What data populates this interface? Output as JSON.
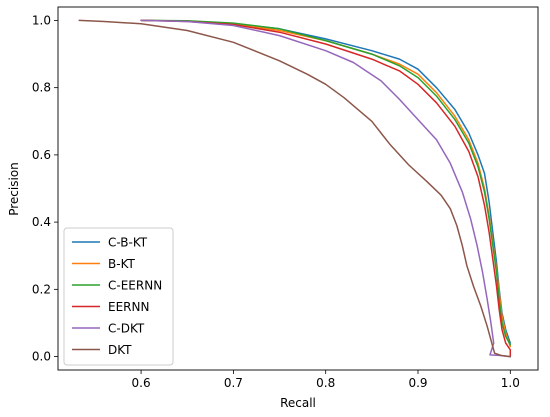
{
  "chart_data": {
    "type": "line",
    "title": "",
    "xlabel": "Recall",
    "ylabel": "Precision",
    "xlim": [
      0.51,
      1.03
    ],
    "ylim": [
      -0.04,
      1.04
    ],
    "xticks": [
      0.6,
      0.7,
      0.8,
      0.9,
      1.0
    ],
    "xtick_labels": [
      "0.6",
      "0.7",
      "0.8",
      "0.9",
      "1.0"
    ],
    "yticks": [
      0.0,
      0.2,
      0.4,
      0.6,
      0.8,
      1.0
    ],
    "ytick_labels": [
      "0.0",
      "0.2",
      "0.4",
      "0.6",
      "0.8",
      "1.0"
    ],
    "grid": false,
    "legend_position": "lower-left",
    "series": [
      {
        "name": "C-B-KT",
        "color": "#1f77b4",
        "points": [
          [
            0.6,
            1.0
          ],
          [
            0.65,
            0.998
          ],
          [
            0.7,
            0.99
          ],
          [
            0.75,
            0.975
          ],
          [
            0.8,
            0.945
          ],
          [
            0.85,
            0.91
          ],
          [
            0.88,
            0.885
          ],
          [
            0.9,
            0.855
          ],
          [
            0.92,
            0.8
          ],
          [
            0.94,
            0.735
          ],
          [
            0.955,
            0.665
          ],
          [
            0.965,
            0.6
          ],
          [
            0.972,
            0.545
          ],
          [
            0.977,
            0.46
          ],
          [
            0.981,
            0.37
          ],
          [
            0.985,
            0.28
          ],
          [
            0.988,
            0.2
          ],
          [
            0.991,
            0.13
          ],
          [
            0.995,
            0.08
          ],
          [
            1.0,
            0.04
          ]
        ]
      },
      {
        "name": "B-KT",
        "color": "#ff7f0e",
        "points": [
          [
            0.6,
            1.0
          ],
          [
            0.65,
            0.998
          ],
          [
            0.7,
            0.99
          ],
          [
            0.75,
            0.97
          ],
          [
            0.8,
            0.94
          ],
          [
            0.85,
            0.9
          ],
          [
            0.88,
            0.87
          ],
          [
            0.9,
            0.84
          ],
          [
            0.92,
            0.785
          ],
          [
            0.94,
            0.715
          ],
          [
            0.955,
            0.645
          ],
          [
            0.965,
            0.575
          ],
          [
            0.972,
            0.5
          ],
          [
            0.977,
            0.42
          ],
          [
            0.981,
            0.34
          ],
          [
            0.985,
            0.26
          ],
          [
            0.988,
            0.19
          ],
          [
            0.991,
            0.12
          ],
          [
            0.995,
            0.07
          ],
          [
            1.0,
            0.03
          ]
        ]
      },
      {
        "name": "C-EERNN",
        "color": "#2ca02c",
        "points": [
          [
            0.6,
            1.0
          ],
          [
            0.65,
            0.999
          ],
          [
            0.7,
            0.992
          ],
          [
            0.75,
            0.975
          ],
          [
            0.8,
            0.94
          ],
          [
            0.85,
            0.9
          ],
          [
            0.88,
            0.865
          ],
          [
            0.9,
            0.83
          ],
          [
            0.92,
            0.775
          ],
          [
            0.94,
            0.705
          ],
          [
            0.955,
            0.635
          ],
          [
            0.965,
            0.565
          ],
          [
            0.972,
            0.49
          ],
          [
            0.977,
            0.41
          ],
          [
            0.981,
            0.33
          ],
          [
            0.985,
            0.25
          ],
          [
            0.988,
            0.17
          ],
          [
            0.991,
            0.1
          ],
          [
            0.995,
            0.06
          ],
          [
            1.0,
            0.035
          ]
        ]
      },
      {
        "name": "EERNN",
        "color": "#d62728",
        "points": [
          [
            0.6,
            1.0
          ],
          [
            0.65,
            0.997
          ],
          [
            0.7,
            0.988
          ],
          [
            0.75,
            0.965
          ],
          [
            0.8,
            0.93
          ],
          [
            0.85,
            0.885
          ],
          [
            0.88,
            0.85
          ],
          [
            0.9,
            0.81
          ],
          [
            0.92,
            0.755
          ],
          [
            0.94,
            0.685
          ],
          [
            0.955,
            0.61
          ],
          [
            0.965,
            0.535
          ],
          [
            0.972,
            0.45
          ],
          [
            0.977,
            0.37
          ],
          [
            0.981,
            0.29
          ],
          [
            0.985,
            0.21
          ],
          [
            0.988,
            0.14
          ],
          [
            0.991,
            0.08
          ],
          [
            0.995,
            0.04
          ],
          [
            1.0,
            0.02
          ],
          [
            1.0,
            0.0
          ]
        ]
      },
      {
        "name": "C-DKT",
        "color": "#9467bd",
        "points": [
          [
            0.6,
            1.0
          ],
          [
            0.65,
            0.997
          ],
          [
            0.7,
            0.985
          ],
          [
            0.75,
            0.955
          ],
          [
            0.8,
            0.91
          ],
          [
            0.83,
            0.875
          ],
          [
            0.86,
            0.82
          ],
          [
            0.88,
            0.765
          ],
          [
            0.9,
            0.705
          ],
          [
            0.92,
            0.645
          ],
          [
            0.935,
            0.575
          ],
          [
            0.948,
            0.49
          ],
          [
            0.957,
            0.41
          ],
          [
            0.964,
            0.33
          ],
          [
            0.97,
            0.25
          ],
          [
            0.975,
            0.17
          ],
          [
            0.979,
            0.1
          ],
          [
            0.982,
            0.04
          ],
          [
            0.978,
            0.005
          ],
          [
            0.99,
            0.003
          ],
          [
            1.0,
            0.0
          ]
        ]
      },
      {
        "name": "DKT",
        "color": "#8c564b",
        "points": [
          [
            0.533,
            1.0
          ],
          [
            0.56,
            0.997
          ],
          [
            0.6,
            0.99
          ],
          [
            0.65,
            0.97
          ],
          [
            0.7,
            0.935
          ],
          [
            0.75,
            0.88
          ],
          [
            0.78,
            0.84
          ],
          [
            0.8,
            0.81
          ],
          [
            0.82,
            0.77
          ],
          [
            0.85,
            0.7
          ],
          [
            0.87,
            0.63
          ],
          [
            0.89,
            0.57
          ],
          [
            0.91,
            0.52
          ],
          [
            0.925,
            0.48
          ],
          [
            0.935,
            0.44
          ],
          [
            0.942,
            0.39
          ],
          [
            0.948,
            0.33
          ],
          [
            0.953,
            0.27
          ],
          [
            0.96,
            0.21
          ],
          [
            0.968,
            0.15
          ],
          [
            0.975,
            0.09
          ],
          [
            0.98,
            0.04
          ],
          [
            0.983,
            0.01
          ],
          [
            0.99,
            0.003
          ],
          [
            1.0,
            0.0
          ]
        ]
      }
    ]
  }
}
